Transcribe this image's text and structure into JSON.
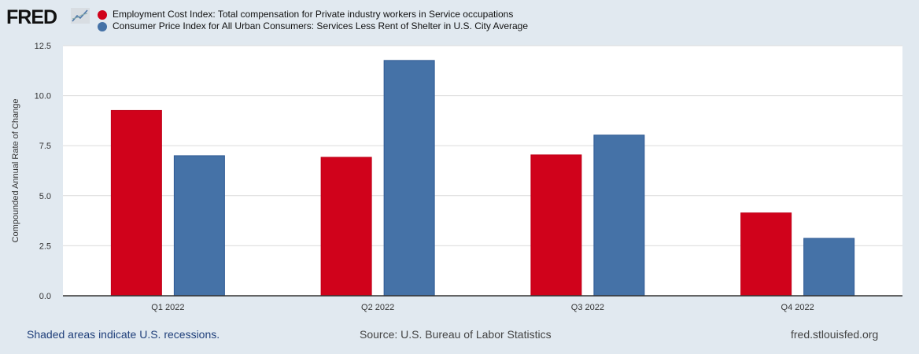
{
  "logo": "FRED",
  "chart_data": {
    "type": "bar",
    "categories": [
      "Q1 2022",
      "Q2 2022",
      "Q3 2022",
      "Q4 2022"
    ],
    "series": [
      {
        "name": "Employment Cost Index: Total compensation for Private industry workers in Service occupations",
        "color": "#d0021b",
        "values": [
          9.26,
          6.92,
          7.04,
          4.14
        ]
      },
      {
        "name": "Consumer Price Index for All Urban Consumers: Services Less Rent of Shelter in U.S. City Average",
        "color": "#4572a7",
        "values": [
          7.0,
          11.76,
          8.03,
          2.87
        ]
      }
    ],
    "ylabel": "Compounded Annual Rate of Change",
    "ylim": [
      0,
      12.5
    ],
    "yticks": [
      "0.0",
      "2.5",
      "5.0",
      "7.5",
      "10.0",
      "12.5"
    ],
    "grid": true,
    "legend": "top"
  },
  "footer": {
    "note": "Shaded areas indicate U.S. recessions.",
    "source": "Source: U.S. Bureau of Labor Statistics",
    "site": "fred.stlouisfed.org"
  }
}
